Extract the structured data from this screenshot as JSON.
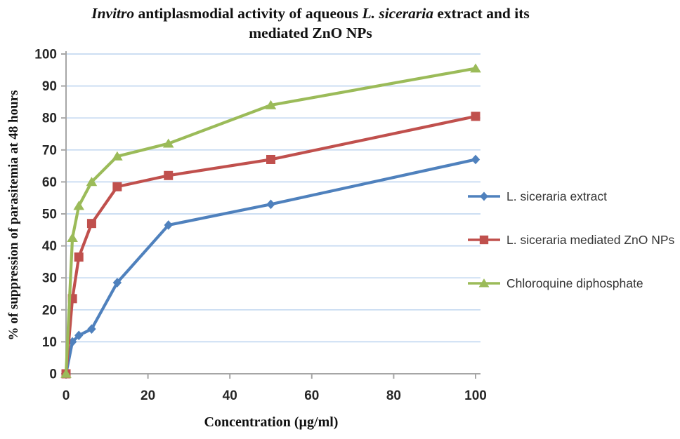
{
  "chart_data": {
    "type": "line",
    "title": "Invitro antiplasmodial activity of aqueous L. siceraria extract and its mediated ZnO NPs",
    "title_lines": [
      [
        {
          "t": "Invitro",
          "i": true
        },
        {
          "t": " antiplasmodial activity of aqueous ",
          "i": false
        },
        {
          "t": "L. siceraria",
          "i": true
        },
        {
          "t": " extract and its",
          "i": false
        }
      ],
      [
        {
          "t": "mediated ZnO NPs",
          "i": false
        }
      ]
    ],
    "xlabel": "Concentration (µg/ml)",
    "ylabel": "% of suppression of parasitemia at 48 hours",
    "x": [
      0,
      1.56,
      3.125,
      6.25,
      12.5,
      25,
      50,
      100
    ],
    "series": [
      {
        "name": "L. siceraria extract",
        "color": "#4F81BD",
        "marker": "diamond",
        "values": [
          0,
          10,
          12,
          14,
          28.5,
          46.5,
          53,
          67
        ]
      },
      {
        "name": "L. siceraria mediated ZnO NPs",
        "color": "#C0504D",
        "marker": "square",
        "values": [
          0,
          23.5,
          36.5,
          47,
          58.5,
          62,
          67,
          80.5
        ]
      },
      {
        "name": "Chloroquine diphosphate",
        "color": "#9BBB59",
        "marker": "triangle",
        "values": [
          0,
          42.5,
          52.5,
          60,
          68,
          72,
          84,
          95.5
        ]
      }
    ],
    "xlim": [
      0,
      100
    ],
    "ylim": [
      0,
      100
    ],
    "x_ticks": [
      0,
      20,
      40,
      60,
      80,
      100
    ],
    "y_ticks": [
      0,
      10,
      20,
      30,
      40,
      50,
      60,
      70,
      80,
      90,
      100
    ],
    "grid": "horizontal",
    "legend_position": "right",
    "colors": {
      "gridline": "#C5D9F1",
      "axis": "#A6A6A6",
      "tick_text": "#262626"
    }
  }
}
